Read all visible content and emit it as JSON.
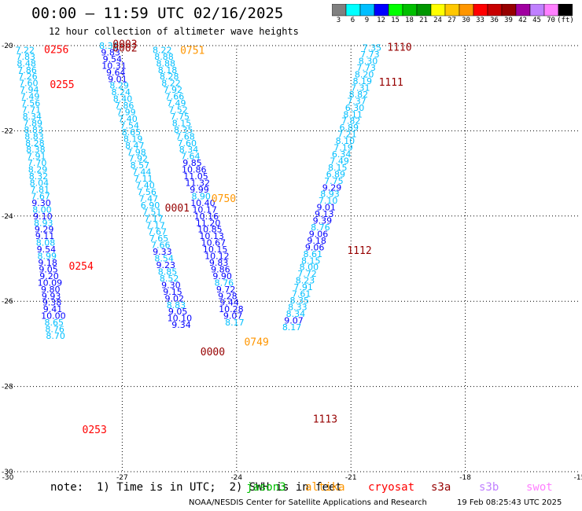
{
  "title": "00:00 – 11:59 UTC 02/16/2025",
  "subtitle": "12 hour collection of altimeter wave heights",
  "legend": {
    "colors": [
      "#808080",
      "#00ffff",
      "#00bfff",
      "#0000ff",
      "#00ff00",
      "#00bf00",
      "#009600",
      "#ffff00",
      "#ffc800",
      "#ff9600",
      "#ff0000",
      "#c80000",
      "#960000",
      "#a000a0",
      "#c080ff",
      "#ff80ff",
      "#000000"
    ],
    "labels": [
      "3",
      "6",
      "9",
      "12",
      "15",
      "18",
      "21",
      "24",
      "27",
      "30",
      "33",
      "36",
      "39",
      "42",
      "45",
      "70",
      "(ft)"
    ]
  },
  "map": {
    "lon_range": [
      -30,
      -15
    ],
    "lat_range": [
      -30,
      -20
    ],
    "x_ticks": [
      "-30",
      "-27",
      "-24",
      "-21",
      "-18",
      "-15"
    ],
    "y_ticks": [
      "-20",
      "-22",
      "-24",
      "-26",
      "-28",
      "-30"
    ]
  },
  "pass_labels": [
    {
      "text": "0256",
      "color": "#ff0000",
      "lon": -29.05,
      "lat": -20.08
    },
    {
      "text": "0255",
      "color": "#ff0000",
      "lon": -28.9,
      "lat": -20.9
    },
    {
      "text": "0254",
      "color": "#ff0000",
      "lon": -28.4,
      "lat": -25.17
    },
    {
      "text": "0253",
      "color": "#ff0000",
      "lon": -28.05,
      "lat": -29.0
    },
    {
      "text": "0003",
      "color": "#960000",
      "lon": -27.25,
      "lat": -19.95
    },
    {
      "text": "0002",
      "color": "#960000",
      "lon": -27.25,
      "lat": -20.05
    },
    {
      "text": "0001",
      "color": "#960000",
      "lon": -25.88,
      "lat": -23.8
    },
    {
      "text": "0000",
      "color": "#960000",
      "lon": -24.95,
      "lat": -27.18
    },
    {
      "text": "0751",
      "color": "#ff9600",
      "lon": -25.48,
      "lat": -20.1
    },
    {
      "text": "0750",
      "color": "#ff9600",
      "lon": -24.66,
      "lat": -23.58
    },
    {
      "text": "0749",
      "color": "#ff9600",
      "lon": -23.8,
      "lat": -26.95
    },
    {
      "text": "1110",
      "color": "#960000",
      "lon": -20.05,
      "lat": -20.03
    },
    {
      "text": "1111",
      "color": "#960000",
      "lon": -20.27,
      "lat": -20.85
    },
    {
      "text": "1112",
      "color": "#960000",
      "lon": -21.1,
      "lat": -24.8
    },
    {
      "text": "1113",
      "color": "#960000",
      "lon": -22.0,
      "lat": -28.75
    }
  ],
  "tracks": [
    {
      "name": "track-0256",
      "lon_top": -29.55,
      "lon_bottom": -28.75,
      "lat_start": -20.1,
      "step": 0.156,
      "values": [
        7.22,
        7.83,
        8.48,
        7.86,
        7.26,
        7.6,
        7.94,
        7.49,
        7.56,
        7.71,
        8.34,
        7.89,
        8.83,
        8.83,
        8.28,
        8.38,
        7.91,
        7.7,
        8.29,
        8.32,
        8.04,
        7.81,
        7.67,
        9.3,
        8.0,
        9.1,
        8.93,
        9.29,
        9.11,
        8.08,
        9.54,
        8.99,
        9.18,
        9.05,
        9.2,
        10.09,
        9.8,
        9.93,
        9.38,
        9.41,
        10.0,
        8.65,
        8.76,
        8.7
      ]
    },
    {
      "name": "track-0003",
      "lon_top": -27.35,
      "lon_bottom": -25.45,
      "lat_start": -20.0,
      "step": 0.156,
      "values": [
        8.36,
        9.83,
        9.54,
        10.31,
        9.64,
        9.01,
        8.29,
        8.24,
        8.4,
        7.86,
        7.99,
        7.4,
        7.54,
        8.65,
        8.19,
        8.47,
        7.98,
        7.92,
        8.57,
        7.44,
        7.11,
        7.4,
        7.56,
        7.47,
        6.9,
        7.51,
        7.17,
        7.17,
        7.67,
        7.65,
        7.66,
        9.33,
        8.54,
        9.23,
        8.85,
        8.52,
        9.3,
        9.15,
        9.02,
        8.83,
        9.05,
        10.1,
        9.34
      ]
    },
    {
      "name": "track-0751",
      "lon_top": -25.95,
      "lon_bottom": -24.05,
      "lat_start": -20.1,
      "step": 0.156,
      "values": [
        8.22,
        8.88,
        8.88,
        8.18,
        8.28,
        8.22,
        7.92,
        7.66,
        7.49,
        7.52,
        7.75,
        8.15,
        8.35,
        7.68,
        7.6,
        8.34,
        7.64,
        9.85,
        10.86,
        11.05,
        11.32,
        9.99,
        8.9,
        10.4,
        10.17,
        10.16,
        11.2,
        10.85,
        10.13,
        10.67,
        10.15,
        10.12,
        9.83,
        9.86,
        9.9,
        8.76,
        9.72,
        9.28,
        9.44,
        10.28,
        9.07,
        8.17
      ]
    },
    {
      "name": "track-1110",
      "lon_top": -20.45,
      "lon_bottom": -22.55,
      "lat_start": -20.05,
      "step": 0.156,
      "values": [
        7.35,
        7.73,
        8.3,
        7.73,
        8.2,
        8.19,
        7.31,
        8.82,
        7.37,
        6.3,
        8.11,
        7.82,
        6.89,
        7.21,
        8.1,
        7.19,
        6.34,
        7.49,
        8.15,
        6.89,
        7.75,
        9.29,
        8.93,
        7.1,
        9.01,
        9.13,
        9.39,
        8.76,
        9.06,
        9.18,
        9.06,
        8.61,
        8.15,
        8.0,
        7.72,
        8.23,
        7.91,
        7.61,
        8.35,
        8.33,
        8.34,
        9.07,
        8.17
      ]
    }
  ],
  "footer": {
    "note": "note:  1) Time is in UTC;  2) SWH is in feet",
    "satellites": [
      {
        "name": "jason3",
        "color": "#00bf00"
      },
      {
        "name": "altika",
        "color": "#ff9600"
      },
      {
        "name": "cryosat",
        "color": "#ff0000"
      },
      {
        "name": "s3a",
        "color": "#960000"
      },
      {
        "name": "s3b",
        "color": "#c080ff"
      },
      {
        "name": "swot",
        "color": "#ff80ff"
      }
    ],
    "credit": "NOAA/NESDIS Center for Satellite Applications and Research",
    "timestamp": "19 Feb 08:25:43 UTC 2025"
  }
}
